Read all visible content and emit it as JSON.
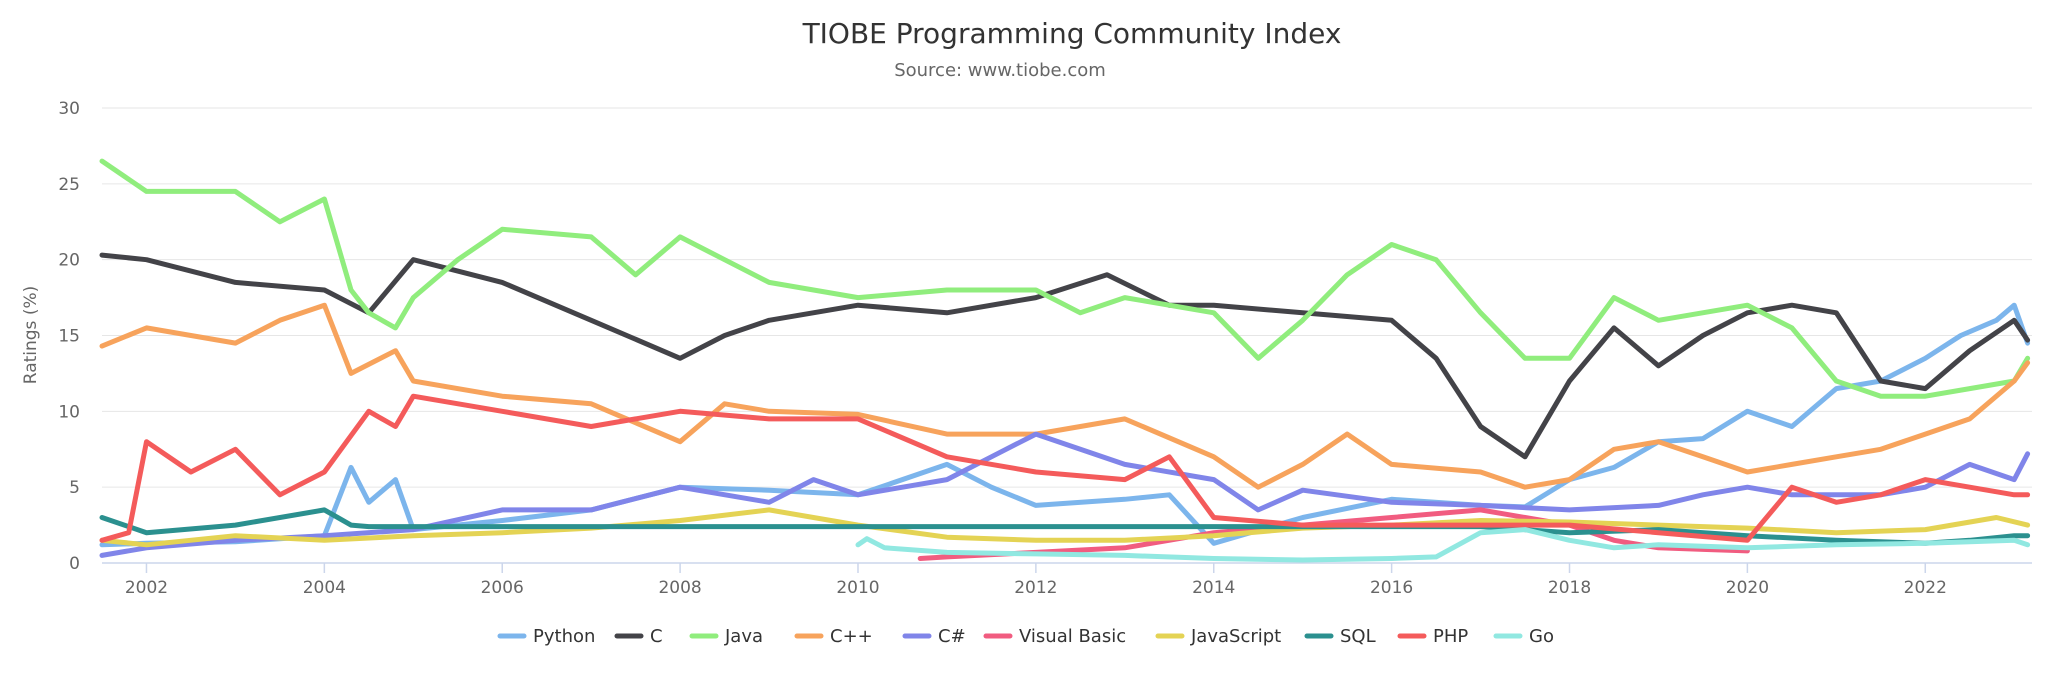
{
  "chart_data": {
    "type": "line",
    "title": "TIOBE Programming Community Index",
    "subtitle": "Source: www.tiobe.com",
    "ylabel": "Ratings (%)",
    "xlabel": "",
    "xlim": [
      2001.5,
      2023.2
    ],
    "ylim": [
      0,
      30
    ],
    "yticks": [
      "0",
      "5",
      "10",
      "15",
      "20",
      "25",
      "30"
    ],
    "xticks": [
      "2002",
      "2004",
      "2006",
      "2008",
      "2010",
      "2012",
      "2014",
      "2016",
      "2018",
      "2020",
      "2022"
    ],
    "grid": true,
    "legend_position": "bottom",
    "series": [
      {
        "name": "Python",
        "color": "#7cb5ec",
        "x": [
          2001.5,
          2002.0,
          2003.0,
          2004.0,
          2004.3,
          2004.5,
          2004.8,
          2005.0,
          2006.0,
          2007.0,
          2008.0,
          2009.0,
          2010.0,
          2011.0,
          2011.5,
          2012.0,
          2013.0,
          2013.5,
          2014.0,
          2015.0,
          2016.0,
          2017.0,
          2017.5,
          2018.0,
          2018.5,
          2019.0,
          2019.5,
          2020.0,
          2020.5,
          2021.0,
          2021.5,
          2022.0,
          2022.4,
          2022.8,
          2023.0,
          2023.15
        ],
        "y": [
          1.2,
          1.3,
          1.4,
          1.8,
          6.3,
          4.0,
          5.5,
          2.2,
          2.8,
          3.5,
          5.0,
          4.8,
          4.5,
          6.5,
          5.0,
          3.8,
          4.2,
          4.5,
          1.3,
          3.0,
          4.2,
          3.8,
          3.7,
          5.5,
          6.3,
          8.0,
          8.2,
          10.0,
          9.0,
          11.5,
          12.0,
          13.5,
          15.0,
          16.0,
          17.0,
          14.5
        ]
      },
      {
        "name": "C",
        "color": "#434348",
        "x": [
          2001.5,
          2002.0,
          2003.0,
          2004.0,
          2004.5,
          2005.0,
          2006.0,
          2007.0,
          2008.0,
          2008.5,
          2009.0,
          2010.0,
          2011.0,
          2012.0,
          2012.8,
          2013.5,
          2014.0,
          2015.0,
          2016.0,
          2016.5,
          2017.0,
          2017.5,
          2018.0,
          2018.5,
          2019.0,
          2019.5,
          2020.0,
          2020.5,
          2021.0,
          2021.5,
          2022.0,
          2022.5,
          2023.0,
          2023.15
        ],
        "y": [
          20.3,
          20.0,
          18.5,
          18.0,
          16.5,
          20.0,
          18.5,
          16.0,
          13.5,
          15.0,
          16.0,
          17.0,
          16.5,
          17.5,
          19.0,
          17.0,
          17.0,
          16.5,
          16.0,
          13.5,
          9.0,
          7.0,
          12.0,
          15.5,
          13.0,
          15.0,
          16.5,
          17.0,
          16.5,
          12.0,
          11.5,
          14.0,
          16.0,
          14.7
        ]
      },
      {
        "name": "Java",
        "color": "#90ed7d",
        "x": [
          2001.5,
          2002.0,
          2003.0,
          2003.5,
          2004.0,
          2004.3,
          2004.5,
          2004.8,
          2005.0,
          2005.5,
          2006.0,
          2007.0,
          2007.5,
          2008.0,
          2008.5,
          2009.0,
          2010.0,
          2011.0,
          2012.0,
          2012.5,
          2013.0,
          2014.0,
          2014.5,
          2015.0,
          2015.5,
          2016.0,
          2016.5,
          2017.0,
          2017.5,
          2018.0,
          2018.5,
          2019.0,
          2020.0,
          2020.5,
          2021.0,
          2021.5,
          2022.0,
          2022.5,
          2023.0,
          2023.15
        ],
        "y": [
          26.5,
          24.5,
          24.5,
          22.5,
          24.0,
          18.0,
          16.5,
          15.5,
          17.5,
          20.0,
          22.0,
          21.5,
          19.0,
          21.5,
          20.0,
          18.5,
          17.5,
          18.0,
          18.0,
          16.5,
          17.5,
          16.5,
          13.5,
          16.0,
          19.0,
          21.0,
          20.0,
          16.5,
          13.5,
          13.5,
          17.5,
          16.0,
          17.0,
          15.5,
          12.0,
          11.0,
          11.0,
          11.5,
          12.0,
          13.5
        ]
      },
      {
        "name": "C++",
        "color": "#f7a35c",
        "x": [
          2001.5,
          2002.0,
          2003.0,
          2003.5,
          2004.0,
          2004.3,
          2004.8,
          2005.0,
          2006.0,
          2007.0,
          2008.0,
          2008.5,
          2009.0,
          2010.0,
          2011.0,
          2012.0,
          2013.0,
          2014.0,
          2014.5,
          2015.0,
          2015.5,
          2016.0,
          2017.0,
          2017.5,
          2018.0,
          2018.5,
          2019.0,
          2019.5,
          2020.0,
          2020.5,
          2021.0,
          2021.5,
          2022.0,
          2022.5,
          2023.0,
          2023.15
        ],
        "y": [
          14.3,
          15.5,
          14.5,
          16.0,
          17.0,
          12.5,
          14.0,
          12.0,
          11.0,
          10.5,
          8.0,
          10.5,
          10.0,
          9.8,
          8.5,
          8.5,
          9.5,
          7.0,
          5.0,
          6.5,
          8.5,
          6.5,
          6.0,
          5.0,
          5.5,
          7.5,
          8.0,
          7.0,
          6.0,
          6.5,
          7.0,
          7.5,
          8.5,
          9.5,
          12.0,
          13.2
        ]
      },
      {
        "name": "C#",
        "color": "#8085e9",
        "x": [
          2001.5,
          2002.0,
          2003.0,
          2004.0,
          2005.0,
          2006.0,
          2007.0,
          2008.0,
          2009.0,
          2009.5,
          2010.0,
          2011.0,
          2011.5,
          2012.0,
          2013.0,
          2014.0,
          2014.5,
          2015.0,
          2016.0,
          2017.0,
          2018.0,
          2019.0,
          2019.5,
          2020.0,
          2020.5,
          2021.0,
          2021.5,
          2022.0,
          2022.5,
          2023.0,
          2023.15
        ],
        "y": [
          0.5,
          1.0,
          1.5,
          1.8,
          2.2,
          3.5,
          3.5,
          5.0,
          4.0,
          5.5,
          4.5,
          5.5,
          7.0,
          8.5,
          6.5,
          5.5,
          3.5,
          4.8,
          4.0,
          3.8,
          3.5,
          3.8,
          4.5,
          5.0,
          4.5,
          4.5,
          4.5,
          5.0,
          6.5,
          5.5,
          7.2
        ]
      },
      {
        "name": "Visual Basic",
        "color": "#f15c80",
        "x": [
          2010.7,
          2011.0,
          2012.0,
          2013.0,
          2014.0,
          2015.0,
          2016.0,
          2017.0,
          2018.0,
          2018.5,
          2019.0,
          2019.5,
          2020.0
        ],
        "y": [
          0.3,
          0.4,
          0.7,
          1.0,
          2.0,
          2.5,
          3.0,
          3.5,
          2.5,
          1.5,
          1.0,
          0.9,
          0.8
        ]
      },
      {
        "name": "JavaScript",
        "color": "#e4d354",
        "x": [
          2001.5,
          2002.0,
          2003.0,
          2004.0,
          2005.0,
          2006.0,
          2007.0,
          2008.0,
          2009.0,
          2010.0,
          2011.0,
          2012.0,
          2013.0,
          2014.0,
          2015.0,
          2016.0,
          2017.0,
          2018.0,
          2019.0,
          2020.0,
          2021.0,
          2022.0,
          2022.8,
          2023.15
        ],
        "y": [
          1.5,
          1.2,
          1.8,
          1.5,
          1.8,
          2.0,
          2.3,
          2.8,
          3.5,
          2.5,
          1.7,
          1.5,
          1.5,
          1.8,
          2.3,
          2.5,
          2.8,
          2.7,
          2.5,
          2.3,
          2.0,
          2.2,
          3.0,
          2.5
        ]
      },
      {
        "name": "SQL",
        "color": "#2b908f",
        "x": [
          2001.5,
          2002.0,
          2003.0,
          2004.0,
          2004.3,
          2004.5,
          2017.0,
          2018.0,
          2019.0,
          2020.0,
          2021.0,
          2022.0,
          2022.5,
          2023.0,
          2023.15
        ],
        "y": [
          3.0,
          2.0,
          2.5,
          3.5,
          2.5,
          2.4,
          2.4,
          2.0,
          2.2,
          1.8,
          1.5,
          1.3,
          1.5,
          1.8,
          1.8
        ]
      },
      {
        "name": "PHP",
        "color": "#f45b5b",
        "x": [
          2001.5,
          2001.8,
          2002.0,
          2002.5,
          2003.0,
          2003.5,
          2004.0,
          2004.5,
          2004.8,
          2005.0,
          2006.0,
          2007.0,
          2008.0,
          2009.0,
          2010.0,
          2011.0,
          2012.0,
          2013.0,
          2013.5,
          2014.0,
          2015.0,
          2016.0,
          2017.0,
          2018.0,
          2019.0,
          2020.0,
          2020.5,
          2021.0,
          2021.5,
          2022.0,
          2022.5,
          2023.0,
          2023.15
        ],
        "y": [
          1.5,
          2.0,
          8.0,
          6.0,
          7.5,
          4.5,
          6.0,
          10.0,
          9.0,
          11.0,
          10.0,
          9.0,
          10.0,
          9.5,
          9.5,
          7.0,
          6.0,
          5.5,
          7.0,
          3.0,
          2.5,
          2.5,
          2.5,
          2.5,
          2.0,
          1.5,
          5.0,
          4.0,
          4.5,
          5.5,
          5.0,
          4.5,
          4.5
        ]
      },
      {
        "name": "Go",
        "color": "#91e8e1",
        "x": [
          2010.0,
          2010.1,
          2010.3,
          2011.0,
          2012.0,
          2013.0,
          2014.0,
          2015.0,
          2016.0,
          2016.5,
          2017.0,
          2017.5,
          2018.0,
          2018.5,
          2019.0,
          2020.0,
          2021.0,
          2022.0,
          2023.0,
          2023.15
        ],
        "y": [
          1.2,
          1.6,
          1.0,
          0.7,
          0.6,
          0.5,
          0.3,
          0.2,
          0.3,
          0.4,
          2.0,
          2.2,
          1.5,
          1.0,
          1.2,
          1.0,
          1.2,
          1.3,
          1.5,
          1.2
        ]
      }
    ]
  }
}
